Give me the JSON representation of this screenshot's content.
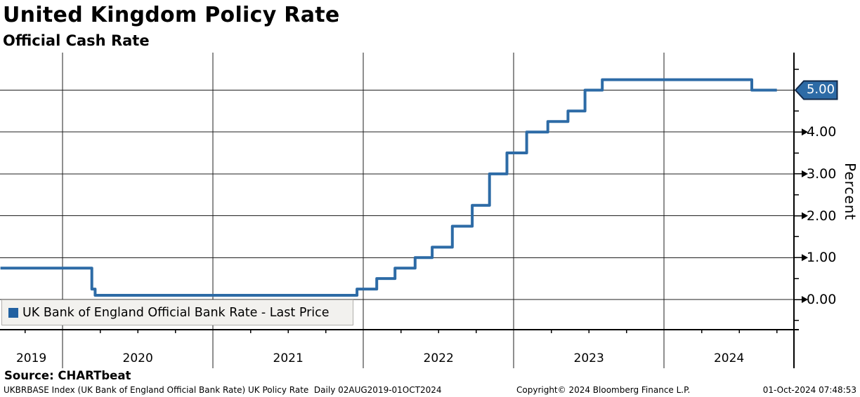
{
  "header": {
    "title": "United Kingdom Policy Rate",
    "subtitle": "Official Cash Rate"
  },
  "chart": {
    "y_axis_label": "Percent",
    "last_price_label": "5.00",
    "line_color": "#2d6ba6",
    "badge_fill": "#2d6ba6",
    "badge_border": "#12294a",
    "legend": {
      "label": "UK Bank of England Official Bank Rate - Last Price",
      "swatch_color": "#2261a1"
    },
    "y_tick_labels": [
      "0.00",
      "1.00",
      "2.00",
      "3.00",
      "4.00"
    ],
    "x_tick_labels": [
      "2019",
      "2020",
      "2021",
      "2022",
      "2023",
      "2024"
    ]
  },
  "chart_data": {
    "type": "line",
    "line_style": "step-after",
    "title": "United Kingdom Policy Rate",
    "subtitle": "Official Cash Rate",
    "ylabel": "Percent",
    "units": "percent",
    "x_range": [
      "2019-08-02",
      "2024-10-01"
    ],
    "ylim": [
      -0.77,
      5.92
    ],
    "y_major_ticks": [
      0,
      1,
      2,
      3,
      4,
      5
    ],
    "y_minor_step": 0.5,
    "grid": true,
    "legend_position": "bottom-left",
    "last_price": 5.0,
    "series": [
      {
        "name": "UK Bank of England Official Bank Rate - Last Price",
        "points": [
          [
            "2019-08-02",
            0.75
          ],
          [
            "2020-03-11",
            0.25
          ],
          [
            "2020-03-19",
            0.1
          ],
          [
            "2021-12-16",
            0.25
          ],
          [
            "2022-02-03",
            0.5
          ],
          [
            "2022-03-17",
            0.75
          ],
          [
            "2022-05-05",
            1.0
          ],
          [
            "2022-06-16",
            1.25
          ],
          [
            "2022-08-04",
            1.75
          ],
          [
            "2022-09-22",
            2.25
          ],
          [
            "2022-11-03",
            3.0
          ],
          [
            "2022-12-15",
            3.5
          ],
          [
            "2023-02-02",
            4.0
          ],
          [
            "2023-03-23",
            4.25
          ],
          [
            "2023-05-11",
            4.5
          ],
          [
            "2023-06-22",
            5.0
          ],
          [
            "2023-08-03",
            5.25
          ],
          [
            "2024-08-01",
            5.0
          ],
          [
            "2024-10-01",
            5.0
          ]
        ]
      }
    ]
  },
  "footer": {
    "source": "Source: CHARTbeat",
    "description": "UKBRBASE Index (UK Bank of England Official Bank Rate) UK Policy Rate  Daily 02AUG2019-01OCT2024",
    "copyright": "Copyright© 2024 Bloomberg Finance L.P.",
    "timestamp": "01-Oct-2024 07:48:53"
  }
}
